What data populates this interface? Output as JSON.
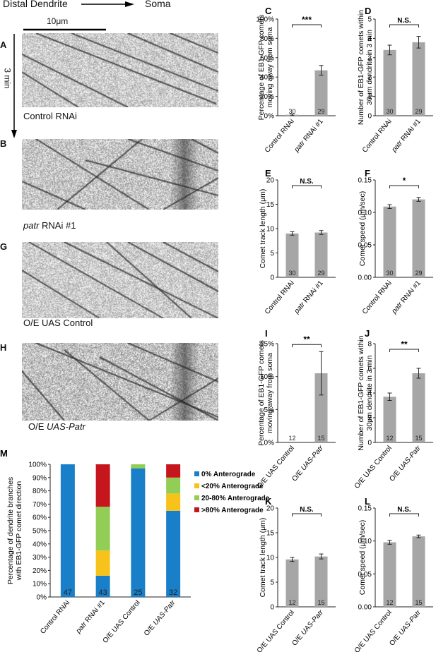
{
  "header": {
    "left": "Distal Dendrite",
    "right": "Soma"
  },
  "scale_bar": {
    "label": "10μm"
  },
  "time_label": "3 min",
  "kymographs": [
    {
      "letter": "A",
      "pre": "Control RNAi",
      "italic": "",
      "post": "",
      "darkness": 0.22,
      "band": false
    },
    {
      "letter": "B",
      "pre": "",
      "italic": "patr",
      "post": " RNAi #1",
      "darkness": 0.25,
      "band": true
    },
    {
      "letter": "G",
      "pre": "O/E UAS Control",
      "italic": "",
      "post": "",
      "darkness": 0.22,
      "band": false
    },
    {
      "letter": "H",
      "pre": "O/E ",
      "italic": "UAS-Patr",
      "post": "",
      "darkness": 0.27,
      "band": true
    }
  ],
  "colors": {
    "bar": "#a6a6a6",
    "stack": [
      "#1a7fc9",
      "#f7c31b",
      "#92ce56",
      "#c4161c"
    ],
    "axis": "#222222"
  },
  "chart_data": [
    {
      "id": "C",
      "type": "bar",
      "letter": "C",
      "ylabel": [
        "Percentage of EB1-GFP comets",
        "moving away from soma"
      ],
      "categories": [
        {
          "pre": "Control RNAi",
          "italic": "",
          "post": ""
        },
        {
          "pre": "",
          "italic": "patr",
          "post": " RNAi #1"
        }
      ],
      "values": [
        1,
        47
      ],
      "errors": [
        0.8,
        5
      ],
      "ylim": [
        0,
        100
      ],
      "ticks": [
        0,
        20,
        40,
        60,
        80,
        100
      ],
      "tick_labels": [
        "0%",
        "20%",
        "40%",
        "60%",
        "80%",
        "100%"
      ],
      "n": [
        "30",
        "29"
      ],
      "sig": "***"
    },
    {
      "id": "D",
      "type": "bar",
      "letter": "D",
      "ylabel": [
        "Number of EB1-GFP comets within",
        "30μm dendrite in 3 min"
      ],
      "categories": [
        {
          "pre": "Control RNAi",
          "italic": "",
          "post": ""
        },
        {
          "pre": "",
          "italic": "patr",
          "post": " RNAi #1"
        }
      ],
      "values": [
        3.4,
        3.8
      ],
      "errors": [
        0.25,
        0.3
      ],
      "ylim": [
        0,
        5
      ],
      "ticks": [
        0,
        1,
        2,
        3,
        4,
        5
      ],
      "tick_labels": [
        "0",
        "1",
        "2",
        "3",
        "4",
        "5"
      ],
      "n": [
        "30",
        "29"
      ],
      "sig": "N.S."
    },
    {
      "id": "E",
      "type": "bar",
      "letter": "E",
      "ylabel": [
        "Comet track length (μm)"
      ],
      "categories": [
        {
          "pre": "Control RNAi",
          "italic": "",
          "post": ""
        },
        {
          "pre": "",
          "italic": "patr",
          "post": " RNAi #1"
        }
      ],
      "values": [
        9.0,
        9.2
      ],
      "errors": [
        0.35,
        0.4
      ],
      "ylim": [
        0,
        20
      ],
      "ticks": [
        0,
        5,
        10,
        15,
        20
      ],
      "tick_labels": [
        "0",
        "5",
        "10",
        "15",
        "20"
      ],
      "n": [
        "30",
        "29"
      ],
      "sig": "N.S."
    },
    {
      "id": "F",
      "type": "bar",
      "letter": "F",
      "ylabel": [
        "Comet speed (μm/sec)"
      ],
      "categories": [
        {
          "pre": "Control RNAi",
          "italic": "",
          "post": ""
        },
        {
          "pre": "",
          "italic": "patr",
          "post": " RNAi #1"
        }
      ],
      "values": [
        0.109,
        0.12
      ],
      "errors": [
        0.003,
        0.003
      ],
      "ylim": [
        0,
        0.15
      ],
      "ticks": [
        0,
        0.05,
        0.1,
        0.15
      ],
      "tick_labels": [
        "0.00",
        "0.05",
        "0.10",
        "0.15"
      ],
      "n": [
        "30",
        "29"
      ],
      "sig": "*"
    },
    {
      "id": "I",
      "type": "bar",
      "letter": "I",
      "ylabel": [
        "Percentage of EB1-GFP comets",
        "moving away from soma"
      ],
      "categories": [
        {
          "pre": "O/E UAS Control",
          "italic": "",
          "post": ""
        },
        {
          "pre": "O/E ",
          "italic": "UAS-Patr",
          "post": ""
        }
      ],
      "values": [
        0,
        10.5
      ],
      "errors": [
        0,
        3.3
      ],
      "ylim": [
        0,
        15
      ],
      "ticks": [
        0,
        5,
        10,
        15
      ],
      "tick_labels": [
        "0%",
        "5%",
        "10%",
        "15%"
      ],
      "n": [
        "12",
        "15"
      ],
      "sig": "**"
    },
    {
      "id": "J",
      "type": "bar",
      "letter": "J",
      "ylabel": [
        "Number of EB1-GFP comets within",
        "30μm dendrite in 3 min"
      ],
      "categories": [
        {
          "pre": "O/E UAS Control",
          "italic": "",
          "post": ""
        },
        {
          "pre": "O/E ",
          "italic": "UAS-Patr",
          "post": ""
        }
      ],
      "values": [
        3.7,
        5.6
      ],
      "errors": [
        0.3,
        0.4
      ],
      "ylim": [
        0,
        8
      ],
      "ticks": [
        0,
        2,
        4,
        6,
        8
      ],
      "tick_labels": [
        "0",
        "2",
        "4",
        "6",
        "8"
      ],
      "n": [
        "12",
        "15"
      ],
      "sig": "**"
    },
    {
      "id": "K",
      "type": "bar",
      "letter": "K",
      "ylabel": [
        "Comet track length (μm)"
      ],
      "categories": [
        {
          "pre": "O/E UAS Control",
          "italic": "",
          "post": ""
        },
        {
          "pre": "O/E ",
          "italic": "UAS-Patr",
          "post": ""
        }
      ],
      "values": [
        9.6,
        10.2
      ],
      "errors": [
        0.4,
        0.5
      ],
      "ylim": [
        0,
        20
      ],
      "ticks": [
        0,
        5,
        10,
        15,
        20
      ],
      "tick_labels": [
        "0",
        "5",
        "10",
        "15",
        "20"
      ],
      "n": [
        "12",
        "15"
      ],
      "sig": "N.S."
    },
    {
      "id": "L",
      "type": "bar",
      "letter": "L",
      "ylabel": [
        "Comet speed (μm/sec)"
      ],
      "categories": [
        {
          "pre": "O/E UAS Control",
          "italic": "",
          "post": ""
        },
        {
          "pre": "O/E ",
          "italic": "UAS-Patr",
          "post": ""
        }
      ],
      "values": [
        0.098,
        0.107
      ],
      "errors": [
        0.003,
        0.002
      ],
      "ylim": [
        0,
        0.15
      ],
      "ticks": [
        0,
        0.05,
        0.1,
        0.15
      ],
      "tick_labels": [
        "0.00",
        "0.05",
        "0.10",
        "0.15"
      ],
      "n": [
        "12",
        "15"
      ],
      "sig": "N.S."
    },
    {
      "id": "M",
      "type": "bar",
      "stacked": true,
      "letter": "M",
      "ylabel": [
        "Percentage of dendrite branches",
        "with EB1-GFP comet direction"
      ],
      "categories": [
        {
          "pre": "Control RNAi",
          "italic": "",
          "post": ""
        },
        {
          "pre": "",
          "italic": "patr",
          "post": " RNAi #1"
        },
        {
          "pre": "O/E UAS Control",
          "italic": "",
          "post": ""
        },
        {
          "pre": "O/E ",
          "italic": "UAS-Patr",
          "post": ""
        }
      ],
      "series": [
        {
          "name": "0% Anterograde",
          "values": [
            100,
            16,
            97,
            65
          ]
        },
        {
          "name": "<20% Anterograde",
          "values": [
            0,
            19,
            0,
            13
          ]
        },
        {
          "name": "20-80% Anterograde",
          "values": [
            0,
            33,
            3,
            12
          ]
        },
        {
          "name": ">80% Anterograde",
          "values": [
            0,
            32,
            0,
            10
          ]
        }
      ],
      "ylim": [
        0,
        100
      ],
      "ticks": [
        0,
        10,
        20,
        30,
        40,
        50,
        60,
        70,
        80,
        90,
        100
      ],
      "tick_labels": [
        "0%",
        "10%",
        "20%",
        "30%",
        "40%",
        "50%",
        "60%",
        "70%",
        "80%",
        "90%",
        "100%"
      ],
      "n": [
        "47",
        "43",
        "25",
        "32"
      ]
    }
  ]
}
